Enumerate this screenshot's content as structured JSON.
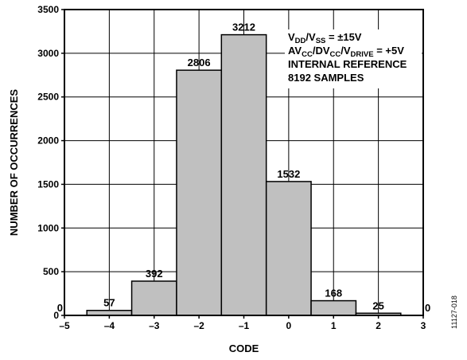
{
  "chart_data": {
    "type": "bar",
    "xlabel": "CODE",
    "ylabel": "NUMBER OF OCCURRENCES",
    "xlim": [
      -5,
      3
    ],
    "ylim": [
      0,
      3500
    ],
    "x_ticks": [
      "–5",
      "–4",
      "–3",
      "–2",
      "–1",
      "0",
      "1",
      "2",
      "3"
    ],
    "y_ticks": [
      "0",
      "500",
      "1000",
      "1500",
      "2000",
      "2500",
      "3000",
      "3500"
    ],
    "x": [
      -5,
      -4,
      -3,
      -2,
      -1,
      0,
      1,
      2,
      3
    ],
    "values": [
      0,
      57,
      392,
      2806,
      3212,
      1532,
      168,
      25,
      0
    ],
    "data_labels": [
      "0",
      "57",
      "392",
      "2806",
      "3212",
      "1532",
      "168",
      "25",
      "0"
    ],
    "bar_color": "#c0c0c0",
    "annotation": {
      "lines": [
        [
          {
            "t": "V"
          },
          {
            "t": "DD",
            "sub": true
          },
          {
            "t": "/V"
          },
          {
            "t": "SS",
            "sub": true
          },
          {
            "t": " = ±15V"
          }
        ],
        [
          {
            "t": "AV"
          },
          {
            "t": "CC",
            "sub": true
          },
          {
            "t": "/DV"
          },
          {
            "t": "CC",
            "sub": true
          },
          {
            "t": "/V"
          },
          {
            "t": "DRIVE",
            "sub": true
          },
          {
            "t": " = +5V"
          }
        ],
        [
          {
            "t": "INTERNAL REFERENCE"
          }
        ],
        [
          {
            "t": "8192 SAMPLES"
          }
        ]
      ]
    },
    "figure_id": "11127-018"
  }
}
